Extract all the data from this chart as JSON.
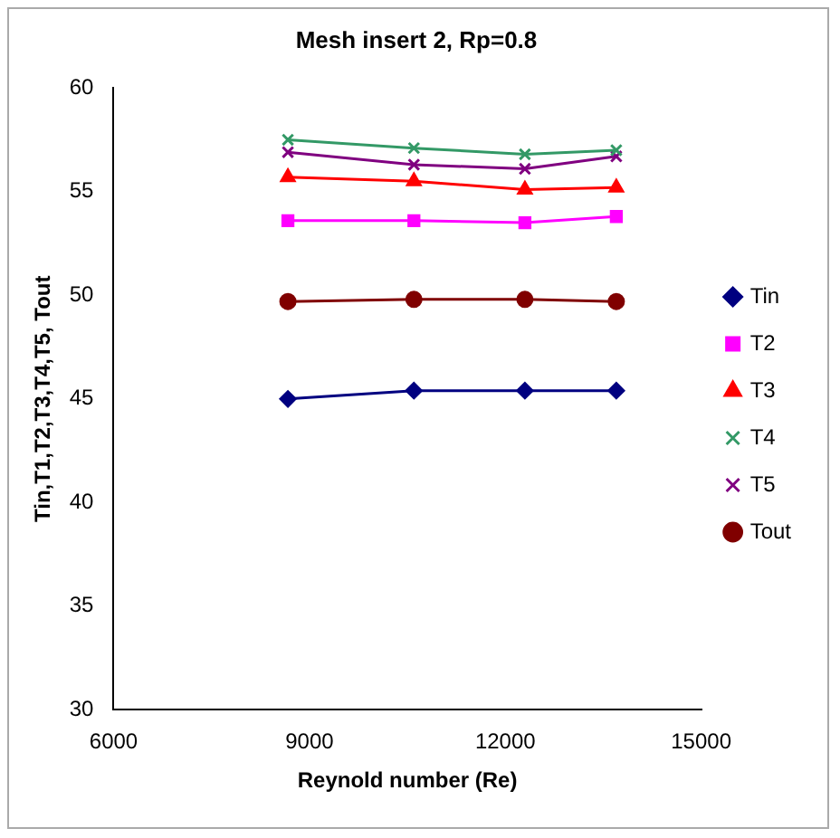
{
  "chart_data": {
    "type": "line",
    "title": "Mesh insert 2, Rp=0.8",
    "xlabel": "Reynold number (Re)",
    "ylabel": "Tin,T1,T2,T3,T4,T5, Tout",
    "x": [
      8670,
      10600,
      12300,
      13700
    ],
    "series": [
      {
        "name": "Tin",
        "color": "#000080",
        "marker": "diamond",
        "values": [
          45.0,
          45.4,
          45.4,
          45.4
        ]
      },
      {
        "name": "T2",
        "color": "#ff00ff",
        "marker": "square",
        "values": [
          53.6,
          53.6,
          53.5,
          53.8
        ]
      },
      {
        "name": "T3",
        "color": "#ff0000",
        "marker": "triangle",
        "values": [
          55.7,
          55.5,
          55.1,
          55.2
        ]
      },
      {
        "name": "T4",
        "color": "#339966",
        "marker": "cross",
        "values": [
          57.5,
          57.1,
          56.8,
          57.0
        ]
      },
      {
        "name": "T5",
        "color": "#800080",
        "marker": "cross",
        "values": [
          56.9,
          56.3,
          56.1,
          56.7
        ]
      },
      {
        "name": "Tout",
        "color": "#800000",
        "marker": "circle",
        "values": [
          49.7,
          49.8,
          49.8,
          49.7
        ]
      }
    ],
    "xlim": [
      6000,
      15000
    ],
    "xticks": [
      6000,
      9000,
      12000,
      15000
    ],
    "ylim": [
      30,
      60
    ],
    "yticks": [
      30,
      35,
      40,
      45,
      50,
      55,
      60
    ],
    "grid": false,
    "legend": "right"
  }
}
